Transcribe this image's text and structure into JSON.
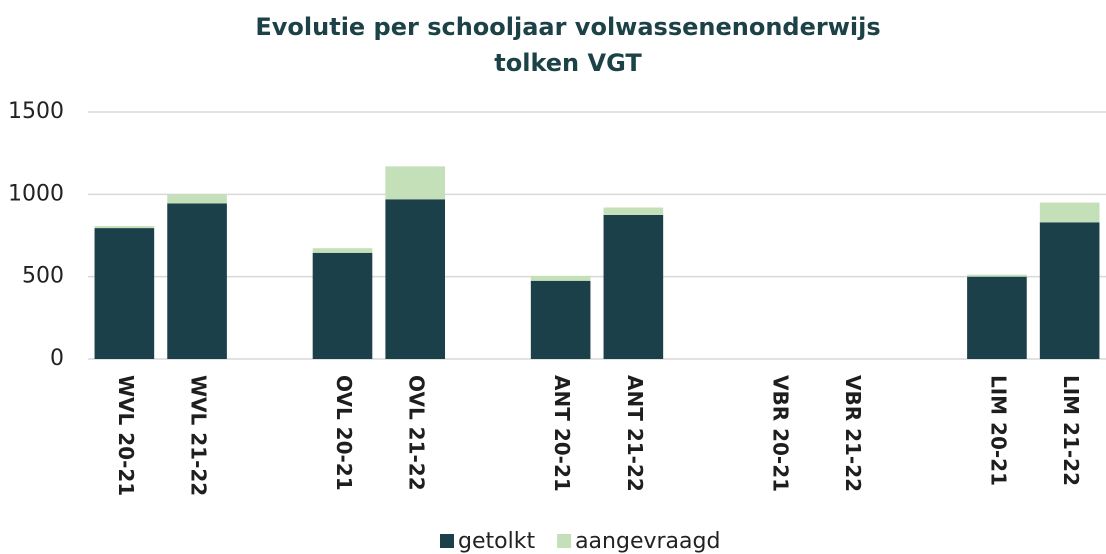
{
  "chart_data": {
    "type": "bar",
    "stacked": true,
    "title": [
      "Evolutie per schooljaar volwassenenonderwijs",
      "tolken VGT"
    ],
    "categories": [
      "WVL 20-21",
      "WVL 21-22",
      null,
      "OVL 20-21",
      "OVL 21-22",
      null,
      "ANT 20-21",
      "ANT 21-22",
      null,
      "VBR 20-21",
      "VBR 21-22",
      null,
      "LIM 20-21",
      "LIM 21-22"
    ],
    "series": [
      {
        "name": "getolkt",
        "color": "#1b4049",
        "values": [
          795,
          945,
          null,
          645,
          970,
          null,
          475,
          875,
          null,
          0,
          0,
          null,
          500,
          830
        ]
      },
      {
        "name": "aangevraagd",
        "color": "#c4e0b8",
        "values": [
          12,
          55,
          null,
          28,
          200,
          null,
          30,
          45,
          null,
          0,
          0,
          null,
          12,
          120
        ]
      }
    ],
    "ylim": [
      0,
      1500
    ],
    "yticks": [
      0,
      500,
      1000,
      1500
    ],
    "grid": true,
    "legend": "bottom"
  }
}
